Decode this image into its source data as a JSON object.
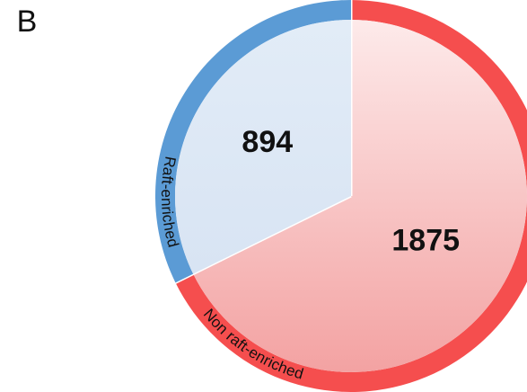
{
  "chart_data": {
    "type": "pie",
    "panel_label": "B",
    "categories": [
      "Non raft-enriched",
      "Raft-enriched"
    ],
    "values": [
      1875,
      894
    ],
    "colors": [
      "#f54e4e",
      "#5b9bd5"
    ]
  }
}
